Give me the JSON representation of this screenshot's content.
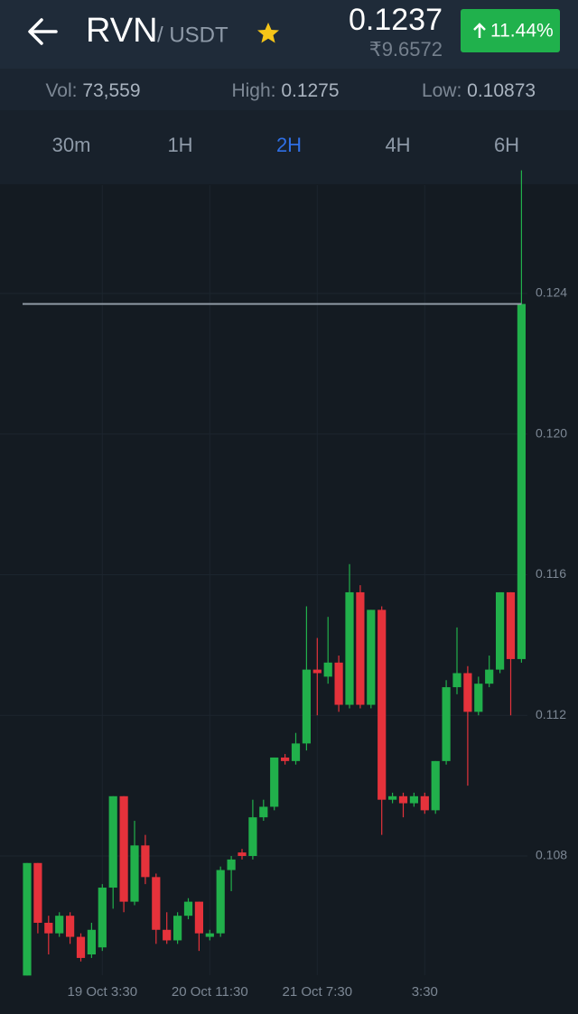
{
  "header": {
    "pair": "RVN",
    "quote": "/ USDT",
    "price": "0.1237",
    "price_inr": "₹9.6572",
    "change": "11.44%"
  },
  "stats": [
    {
      "label": "Vol:",
      "value": "73,559"
    },
    {
      "label": "High:",
      "value": "0.1275"
    },
    {
      "label": "Low:",
      "value": "0.10873"
    }
  ],
  "tabs": {
    "items": [
      "30m",
      "1H",
      "2H",
      "4H",
      "6H"
    ],
    "active_index": 2
  },
  "chart_data": {
    "type": "candlestick",
    "categories": [
      null,
      null,
      null,
      null,
      null,
      null,
      null,
      "19 Oct 3:30",
      null,
      null,
      null,
      null,
      null,
      null,
      null,
      null,
      null,
      "20 Oct 11:30",
      null,
      null,
      null,
      null,
      null,
      null,
      null,
      null,
      null,
      "21 Oct 7:30",
      null,
      null,
      null,
      null,
      null,
      null,
      null,
      null,
      null,
      "3:30",
      null,
      null,
      null,
      null,
      null,
      null,
      null,
      null,
      null
    ],
    "open": [
      0.1046,
      0.1078,
      0.1061,
      0.1058,
      0.1063,
      0.1057,
      0.1052,
      0.1054,
      0.1071,
      0.1097,
      0.1067,
      0.1083,
      0.1074,
      0.1059,
      0.1056,
      0.1063,
      0.1067,
      0.1057,
      0.1058,
      0.1076,
      0.1081,
      0.108,
      0.1091,
      0.1094,
      0.1108,
      0.1107,
      0.1112,
      0.1133,
      0.1131,
      0.1135,
      0.1123,
      0.1155,
      0.1123,
      0.115,
      0.1096,
      0.1097,
      0.1095,
      0.1097,
      0.1093,
      0.1107,
      0.1128,
      0.1132,
      0.1121,
      0.1129,
      0.1133,
      0.1155,
      0.1136
    ],
    "high": [
      0.1078,
      0.1078,
      0.1063,
      0.1064,
      0.1064,
      0.1058,
      0.1061,
      0.1072,
      0.1097,
      0.1097,
      0.109,
      0.1086,
      0.1075,
      0.1064,
      0.1064,
      0.1068,
      0.1067,
      0.1059,
      0.1077,
      0.108,
      0.1082,
      0.1096,
      0.1096,
      0.1108,
      0.1109,
      0.1115,
      0.1151,
      0.1142,
      0.1148,
      0.1137,
      0.1163,
      0.1157,
      0.115,
      0.1151,
      0.1098,
      0.1098,
      0.1098,
      0.1098,
      0.1107,
      0.113,
      0.1145,
      0.1134,
      0.1131,
      0.1137,
      0.1155,
      0.1155,
      0.1275
    ],
    "low": [
      0.1046,
      0.1058,
      0.1052,
      0.1057,
      0.1055,
      0.105,
      0.1051,
      0.1053,
      0.1065,
      0.1064,
      0.1066,
      0.1072,
      0.1055,
      0.1055,
      0.1055,
      0.1062,
      0.1053,
      0.1056,
      0.1057,
      0.107,
      0.1079,
      0.1079,
      0.109,
      0.1093,
      0.1106,
      0.1106,
      0.111,
      0.112,
      0.1129,
      0.1121,
      0.1122,
      0.1122,
      0.1122,
      0.1086,
      0.1095,
      0.1091,
      0.1094,
      0.1092,
      0.1092,
      0.1106,
      0.1126,
      0.11,
      0.112,
      0.1128,
      0.1132,
      0.112,
      0.1135
    ],
    "close": [
      0.1078,
      0.1061,
      0.1058,
      0.1063,
      0.1057,
      0.1051,
      0.1059,
      0.1071,
      0.1097,
      0.1067,
      0.1083,
      0.1074,
      0.1059,
      0.1056,
      0.1063,
      0.1067,
      0.1058,
      0.1058,
      0.1076,
      0.1079,
      0.108,
      0.1091,
      0.1094,
      0.1108,
      0.1107,
      0.1112,
      0.1133,
      0.1132,
      0.1135,
      0.1123,
      0.1155,
      0.1123,
      0.115,
      0.1096,
      0.1097,
      0.1095,
      0.1097,
      0.1093,
      0.1107,
      0.1128,
      0.1132,
      0.1121,
      0.1129,
      0.1133,
      0.1155,
      0.1136,
      0.1237
    ],
    "up_color": "#21b04b",
    "down_color": "#e5323b",
    "last_price": 0.1237,
    "ylim": [
      0.10461,
      0.12708
    ],
    "yticks": [
      0.108,
      0.112,
      0.116,
      {
        "value": 0.12,
        "label": "0.120"
      },
      0.124
    ],
    "grid": true
  }
}
